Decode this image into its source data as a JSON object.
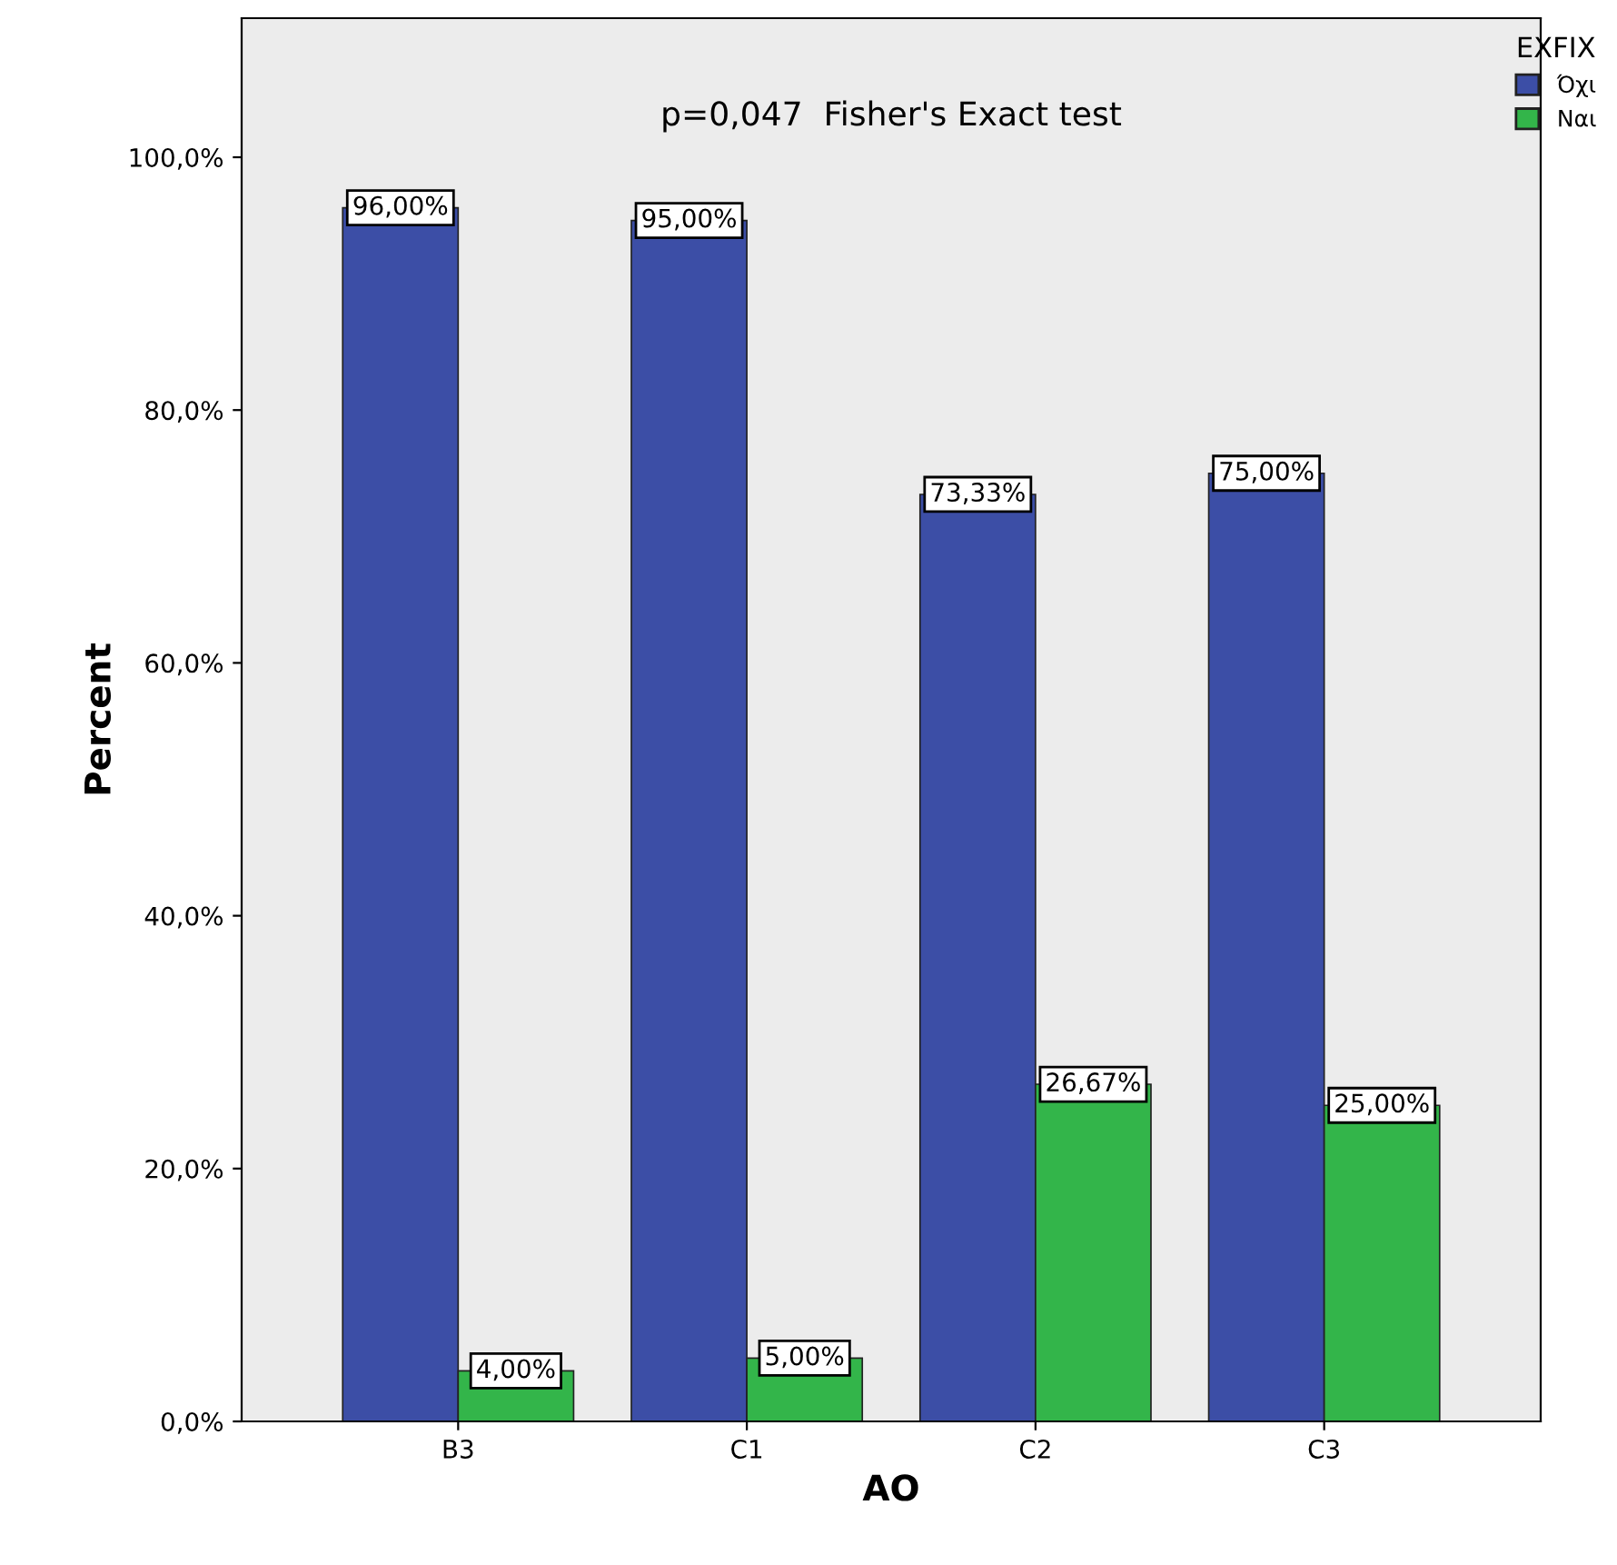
{
  "chart_data": {
    "type": "bar",
    "xlabel": "AO",
    "ylabel": "Percent",
    "legend_title": "EXFIX",
    "legend": "top right",
    "grid": false,
    "categories": [
      "B3",
      "C1",
      "C2",
      "C3"
    ],
    "series": [
      {
        "name": "Όχι",
        "color": "#3c4ea6",
        "values": [
          96.0,
          95.0,
          73.33,
          75.0
        ],
        "value_labels": [
          "96,00%",
          "95,00%",
          "73,33%",
          "75,00%"
        ]
      },
      {
        "name": "Ναι",
        "color": "#33b54a",
        "values": [
          4.0,
          5.0,
          26.67,
          25.0
        ],
        "value_labels": [
          "4,00%",
          "5,00%",
          "26,67%",
          "25,00%"
        ]
      }
    ],
    "ylim": [
      0,
      111
    ],
    "yticks": [
      {
        "value": 0,
        "label": "0,0%"
      },
      {
        "value": 20,
        "label": "20,0%"
      },
      {
        "value": 40,
        "label": "40,0%"
      },
      {
        "value": 60,
        "label": "60,0%"
      },
      {
        "value": 80,
        "label": "80,0%"
      },
      {
        "value": 100,
        "label": "100,0%"
      }
    ],
    "annotations": [
      "p=0,047  Fisher's Exact test"
    ]
  }
}
